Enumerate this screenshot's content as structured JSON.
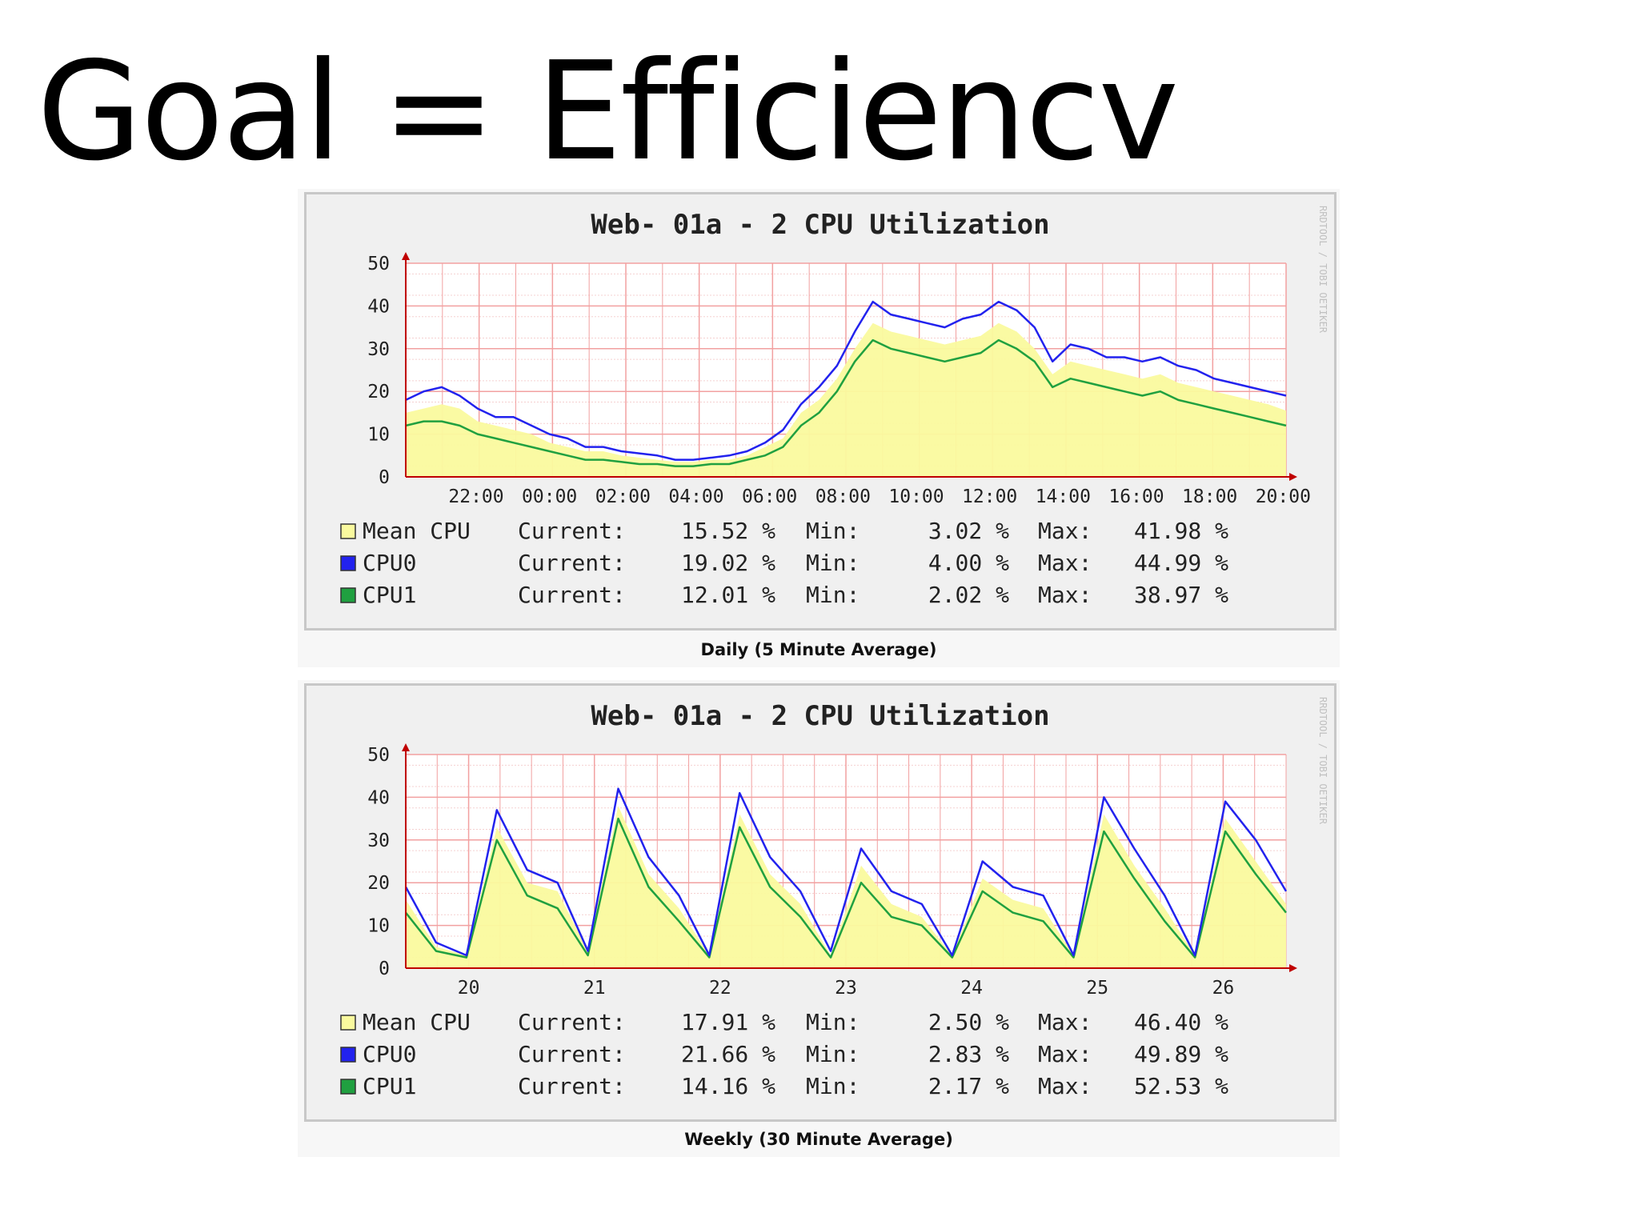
{
  "slide": {
    "title": "Goal = Efficiencv"
  },
  "colors": {
    "mean": "#fafa9e",
    "cpu0": "#2222ee",
    "cpu1": "#20a040",
    "grid": "#f2a0a0",
    "axis": "#c00000"
  },
  "chart_data": [
    {
      "type": "area",
      "title": "Web-     01a - 2 CPU Utilization",
      "caption": "Daily (5 Minute Average)",
      "watermark": "RRDTOOL / TOBI OETIKER",
      "ylim": [
        0,
        50
      ],
      "yticks": [
        "50",
        "40",
        "30",
        "20",
        "10",
        "0"
      ],
      "xtick_labels": [
        "22:00",
        "00:00",
        "02:00",
        "04:00",
        "06:00",
        "08:00",
        "10:00",
        "12:00",
        "14:00",
        "16:00",
        "18:00",
        "20:00"
      ],
      "grid": true,
      "x": [
        "20:00",
        "20:30",
        "21:00",
        "21:30",
        "22:00",
        "22:30",
        "23:00",
        "23:30",
        "00:00",
        "00:30",
        "01:00",
        "01:30",
        "02:00",
        "02:30",
        "03:00",
        "03:30",
        "04:00",
        "04:30",
        "05:00",
        "05:30",
        "06:00",
        "06:30",
        "07:00",
        "07:30",
        "08:00",
        "08:30",
        "09:00",
        "09:30",
        "10:00",
        "10:30",
        "11:00",
        "11:30",
        "12:00",
        "12:30",
        "13:00",
        "13:30",
        "14:00",
        "14:30",
        "15:00",
        "15:30",
        "16:00",
        "16:30",
        "17:00",
        "17:30",
        "18:00",
        "18:30",
        "19:00",
        "19:30",
        "20:00",
        "20:30"
      ],
      "series": [
        {
          "name": "Mean CPU",
          "color": "#fafa9e",
          "values": [
            15,
            16,
            17,
            16,
            13,
            12,
            11,
            10,
            8,
            7,
            6,
            6,
            5,
            4.5,
            4,
            3.5,
            3.5,
            4,
            4,
            5,
            7,
            9,
            15,
            18,
            23,
            30,
            36,
            34,
            33,
            32,
            31,
            32,
            33,
            36,
            34,
            30,
            24,
            27,
            26,
            25,
            24,
            23,
            24,
            22,
            21,
            20,
            19,
            18,
            17,
            15.5
          ],
          "current": "15.52 %",
          "min": "3.02 %",
          "max": "41.98 %"
        },
        {
          "name": "CPU0",
          "color": "#2222ee",
          "values": [
            18,
            20,
            21,
            19,
            16,
            14,
            14,
            12,
            10,
            9,
            7,
            7,
            6,
            5.5,
            5,
            4,
            4,
            4.5,
            5,
            6,
            8,
            11,
            17,
            21,
            26,
            34,
            41,
            38,
            37,
            36,
            35,
            37,
            38,
            41,
            39,
            35,
            27,
            31,
            30,
            28,
            28,
            27,
            28,
            26,
            25,
            23,
            22,
            21,
            20,
            19
          ],
          "current": "19.02 %",
          "min": "4.00 %",
          "max": "44.99 %"
        },
        {
          "name": "CPU1",
          "color": "#20a040",
          "values": [
            12,
            13,
            13,
            12,
            10,
            9,
            8,
            7,
            6,
            5,
            4,
            4,
            3.5,
            3,
            3,
            2.5,
            2.5,
            3,
            3,
            4,
            5,
            7,
            12,
            15,
            20,
            27,
            32,
            30,
            29,
            28,
            27,
            28,
            29,
            32,
            30,
            27,
            21,
            23,
            22,
            21,
            20,
            19,
            20,
            18,
            17,
            16,
            15,
            14,
            13,
            12
          ],
          "current": "12.01 %",
          "min": "2.02 %",
          "max": "38.97 %"
        }
      ]
    },
    {
      "type": "area",
      "title": "Web-     01a - 2 CPU Utilization",
      "caption": "Weekly (30 Minute Average)",
      "watermark": "RRDTOOL / TOBI OETIKER",
      "ylim": [
        0,
        50
      ],
      "yticks": [
        "50",
        "40",
        "30",
        "20",
        "10",
        "0"
      ],
      "xtick_labels": [
        "20",
        "21",
        "22",
        "23",
        "24",
        "25",
        "26"
      ],
      "grid": true,
      "x": [
        "19 12:00",
        "19 18:00",
        "20 00:00",
        "20 06:00",
        "20 12:00",
        "20 18:00",
        "21 00:00",
        "21 06:00",
        "21 12:00",
        "21 18:00",
        "22 00:00",
        "22 06:00",
        "22 12:00",
        "22 18:00",
        "23 00:00",
        "23 06:00",
        "23 12:00",
        "23 18:00",
        "24 00:00",
        "24 06:00",
        "24 12:00",
        "24 18:00",
        "25 00:00",
        "25 06:00",
        "25 12:00",
        "25 18:00",
        "26 00:00",
        "26 06:00",
        "26 12:00",
        "26 18:00"
      ],
      "series": [
        {
          "name": "Mean CPU",
          "color": "#fafa9e",
          "values": [
            16,
            5,
            3,
            33,
            20,
            18,
            4,
            38,
            22,
            14,
            3,
            36,
            22,
            15,
            3,
            24,
            15,
            12,
            3,
            21,
            16,
            14,
            3,
            36,
            24,
            14,
            3,
            35,
            25,
            15
          ],
          "current": "17.91 %",
          "min": "2.50 %",
          "max": "46.40 %"
        },
        {
          "name": "CPU0",
          "color": "#2222ee",
          "values": [
            19,
            6,
            3,
            37,
            23,
            20,
            4,
            42,
            26,
            17,
            3,
            41,
            26,
            18,
            4,
            28,
            18,
            15,
            3,
            25,
            19,
            17,
            3,
            40,
            28,
            17,
            3,
            39,
            30,
            18
          ],
          "current": "21.66 %",
          "min": "2.83 %",
          "max": "49.89 %"
        },
        {
          "name": "CPU1",
          "color": "#20a040",
          "values": [
            13,
            4,
            2.5,
            30,
            17,
            14,
            3,
            35,
            19,
            11,
            2.5,
            33,
            19,
            12,
            2.5,
            20,
            12,
            10,
            2.5,
            18,
            13,
            11,
            2.5,
            32,
            21,
            11,
            2.5,
            32,
            22,
            13
          ],
          "current": "14.16 %",
          "min": "2.17 %",
          "max": "52.53 %"
        }
      ]
    }
  ],
  "legend_labels": {
    "current": "Current:",
    "min": "Min:",
    "max": "Max:"
  }
}
